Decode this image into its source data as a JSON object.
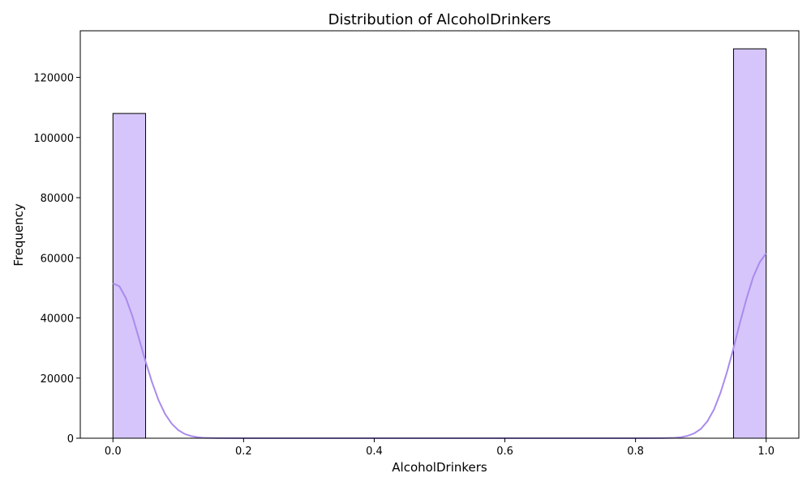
{
  "chart_data": {
    "type": "histogram",
    "title": "Distribution of AlcoholDrinkers",
    "xlabel": "AlcoholDrinkers",
    "ylabel": "Frequency",
    "xlim": [
      -0.05,
      1.05
    ],
    "ylim": [
      0,
      135500
    ],
    "x_ticks": [
      0.0,
      0.2,
      0.4,
      0.6,
      0.8,
      1.0
    ],
    "x_tick_labels": [
      "0.0",
      "0.2",
      "0.4",
      "0.6",
      "0.8",
      "1.0"
    ],
    "y_ticks": [
      0,
      20000,
      40000,
      60000,
      80000,
      100000,
      120000
    ],
    "y_tick_labels": [
      "0",
      "20000",
      "40000",
      "60000",
      "80000",
      "100000",
      "120000"
    ],
    "bins": [
      {
        "x0": 0.0,
        "x1": 0.05,
        "count": 108000
      },
      {
        "x0": 0.95,
        "x1": 1.0,
        "count": 129500
      }
    ],
    "kde": [
      [
        0.0,
        51500
      ],
      [
        0.01,
        50500
      ],
      [
        0.02,
        46500
      ],
      [
        0.03,
        40500
      ],
      [
        0.04,
        33000
      ],
      [
        0.05,
        25500
      ],
      [
        0.06,
        18500
      ],
      [
        0.07,
        12500
      ],
      [
        0.08,
        8000
      ],
      [
        0.09,
        4800
      ],
      [
        0.1,
        2700
      ],
      [
        0.11,
        1400
      ],
      [
        0.12,
        700
      ],
      [
        0.13,
        300
      ],
      [
        0.14,
        120
      ],
      [
        0.16,
        20
      ],
      [
        0.2,
        0
      ],
      [
        0.5,
        0
      ],
      [
        0.8,
        0
      ],
      [
        0.84,
        20
      ],
      [
        0.86,
        140
      ],
      [
        0.87,
        350
      ],
      [
        0.88,
        800
      ],
      [
        0.89,
        1650
      ],
      [
        0.9,
        3100
      ],
      [
        0.91,
        5600
      ],
      [
        0.92,
        9500
      ],
      [
        0.93,
        15000
      ],
      [
        0.94,
        22000
      ],
      [
        0.95,
        30000
      ],
      [
        0.96,
        38500
      ],
      [
        0.97,
        46500
      ],
      [
        0.98,
        53500
      ],
      [
        0.99,
        58500
      ],
      [
        1.0,
        61500
      ]
    ],
    "colors": {
      "bar_fill": "#d5c5fa",
      "bar_edge": "#000000",
      "kde_line": "#a98bec"
    },
    "grid": false
  }
}
